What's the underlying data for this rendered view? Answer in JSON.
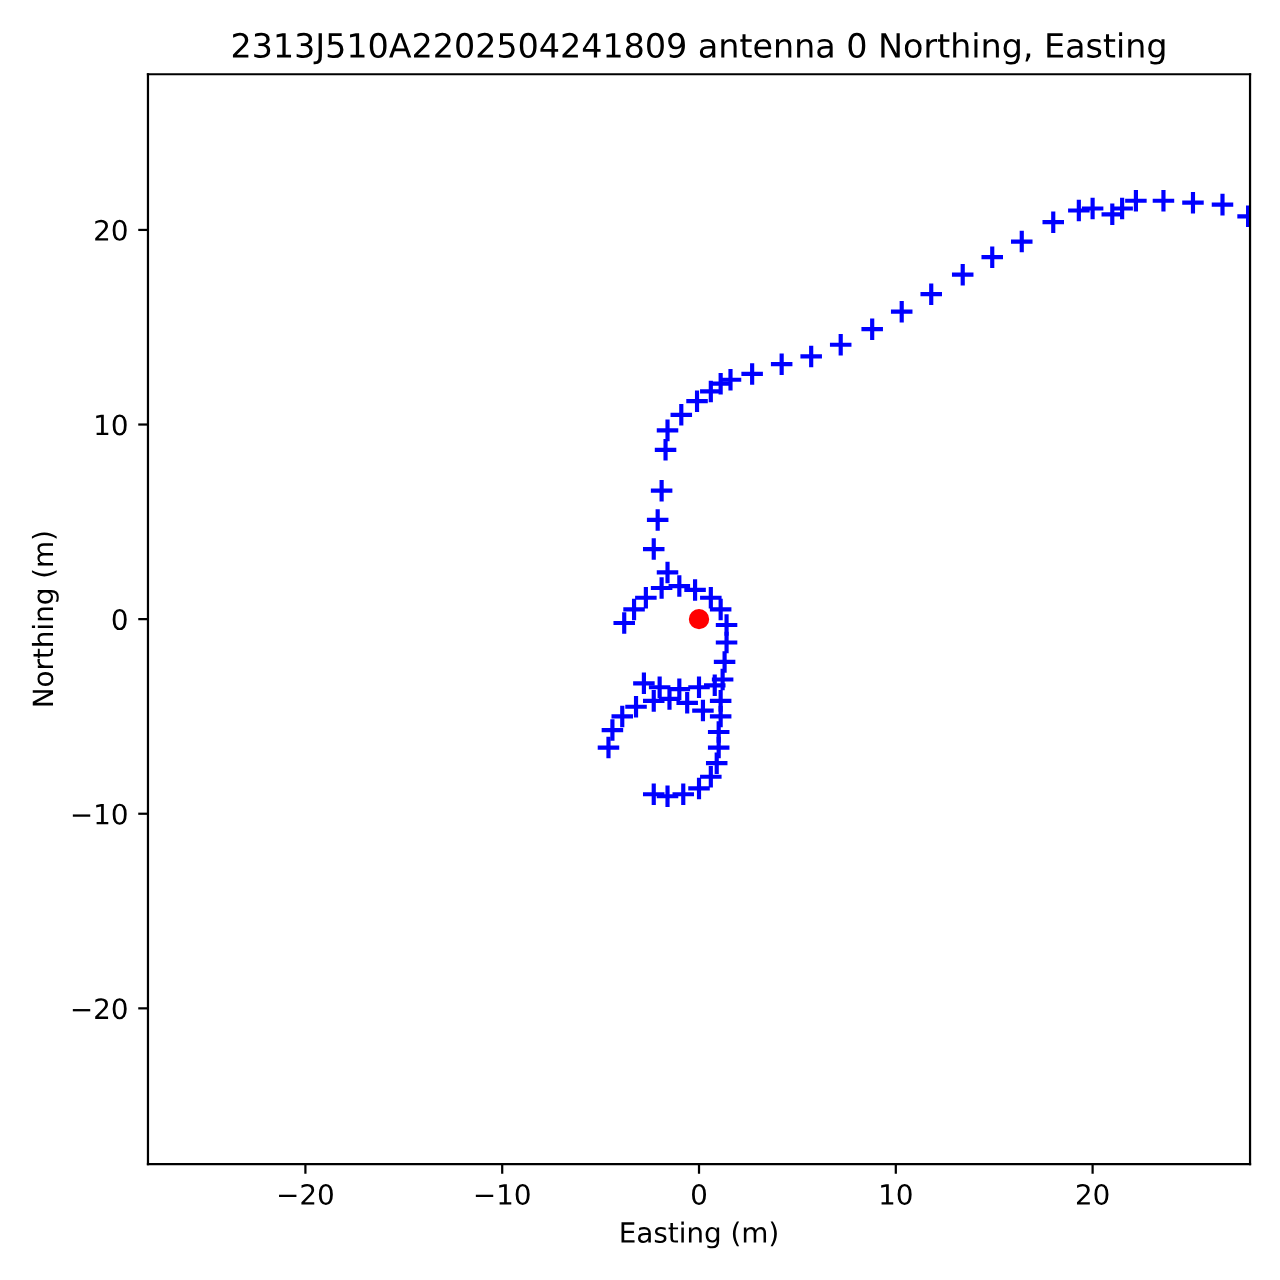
{
  "chart_data": {
    "type": "scatter",
    "title": "2313J510A2202504241809 antenna 0 Northing, Easting",
    "xlabel": "Easting (m)",
    "ylabel": "Northing (m)",
    "xlim": [
      -28,
      28
    ],
    "ylim": [
      -28,
      28
    ],
    "xticks": [
      {
        "value": -20,
        "label": "−20"
      },
      {
        "value": -10,
        "label": "−10"
      },
      0,
      10,
      20
    ],
    "yticks": [
      {
        "value": -20,
        "label": "−20"
      },
      {
        "value": -10,
        "label": "−10"
      },
      0,
      10,
      20
    ],
    "grid": false,
    "series": [
      {
        "color": "#0000ff",
        "marker": "cross",
        "x": [
          27.9,
          26.6,
          25.1,
          23.6,
          22.2,
          21.5,
          21.0,
          20.0,
          19.3,
          18.0,
          16.4,
          14.9,
          13.4,
          11.8,
          10.3,
          8.8,
          7.2,
          5.7,
          4.2,
          2.7,
          1.6,
          1.1,
          0.6,
          -0.1,
          -0.9,
          -1.6,
          -1.7,
          -1.9,
          -2.1,
          -2.3,
          -3.8,
          -3.3,
          -2.7,
          -1.9,
          -1.6,
          -1.0,
          -0.2,
          0.6,
          1.1,
          1.4,
          1.4,
          1.3,
          1.2,
          -2.8,
          -2.0,
          -1.0,
          0.0,
          0.8,
          1.1,
          1.1,
          1.0,
          1.0,
          0.9,
          0.6,
          0.0,
          -0.8,
          -1.6,
          -2.3,
          -4.6,
          -4.4,
          -3.9,
          -3.2,
          -2.3,
          -1.5,
          -0.6,
          0.2
        ],
        "values": [
          20.7,
          21.3,
          21.4,
          21.5,
          21.5,
          21.1,
          20.8,
          21.1,
          21.0,
          20.4,
          19.4,
          18.6,
          17.7,
          16.7,
          15.8,
          14.9,
          14.1,
          13.5,
          13.1,
          12.6,
          12.3,
          12.1,
          11.7,
          11.2,
          10.5,
          9.7,
          8.7,
          6.6,
          5.1,
          3.6,
          -0.2,
          0.5,
          1.1,
          1.6,
          2.4,
          1.7,
          1.5,
          1.1,
          0.5,
          -0.3,
          -1.2,
          -2.2,
          -3.1,
          -3.3,
          -3.5,
          -3.6,
          -3.5,
          -3.4,
          -4.2,
          -5.0,
          -5.8,
          -6.6,
          -7.4,
          -8.1,
          -8.7,
          -9.0,
          -9.1,
          -9.0,
          -6.6,
          -5.7,
          -5.0,
          -4.5,
          -4.2,
          -4.1,
          -4.3,
          -4.7
        ]
      },
      {
        "color": "#ff0000",
        "marker": "circle",
        "x": [
          0
        ],
        "values": [
          0
        ]
      }
    ]
  }
}
